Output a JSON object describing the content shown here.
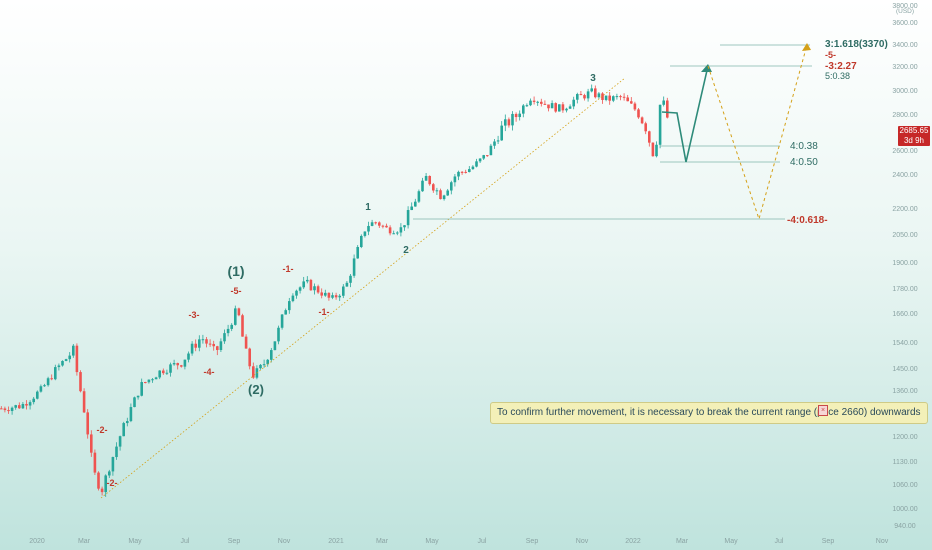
{
  "chart_data": {
    "type": "candlestick",
    "y_axis": {
      "unit": "USD",
      "ticks": [
        "3800.00",
        "3600.00",
        "3400.00",
        "3200.00",
        "3000.00",
        "2800.00",
        "2600.00",
        "2400.00",
        "2200.00",
        "2050.00",
        "1900.00",
        "1780.00",
        "1660.00",
        "1540.00",
        "1450.00",
        "1360.00",
        "1280.00",
        "1200.00",
        "1130.00",
        "1060.00",
        "1000.00",
        "940.00"
      ]
    },
    "x_axis": {
      "ticks": [
        "2020",
        "Mar",
        "May",
        "Jul",
        "Sep",
        "Nov",
        "2021",
        "Mar",
        "May",
        "Jul",
        "Sep",
        "Nov",
        "2022",
        "Mar",
        "May",
        "Jul",
        "Sep",
        "Nov"
      ]
    },
    "current_price": {
      "value": "2685.65",
      "countdown": "3d 9h"
    },
    "wave_labels": [
      {
        "text": "(1)",
        "color": "#2e6b63"
      },
      {
        "text": "(2)",
        "color": "#2e6b63"
      },
      {
        "text": "-5-",
        "color": "#c0392b"
      },
      {
        "text": "-3-",
        "color": "#c0392b"
      },
      {
        "text": "-4-",
        "color": "#c0392b"
      },
      {
        "text": "-1-",
        "color": "#c0392b"
      },
      {
        "text": "-2-",
        "color": "#c0392b"
      },
      {
        "text": "-1-",
        "color": "#c0392b"
      },
      {
        "text": "-2-",
        "color": "#c0392b"
      },
      {
        "text": "1",
        "color": "#2e6b63"
      },
      {
        "text": "2",
        "color": "#2e6b63"
      },
      {
        "text": "3",
        "color": "#2e6b63"
      }
    ],
    "levels": [
      {
        "text": "3:1.618(3370)",
        "color": "#2e6b63"
      },
      {
        "text": "-5-",
        "color": "#c0392b"
      },
      {
        "text": "-3:2.27",
        "color": "#c0392b"
      },
      {
        "text": "5:0.38",
        "color": "#2e6b63"
      },
      {
        "text": "4:0.38",
        "color": "#2e6b63"
      },
      {
        "text": "4:0.50",
        "color": "#2e6b63"
      },
      {
        "text": "-4:0.618-",
        "color": "#c0392b"
      }
    ],
    "annotation": "To confirm further movement, it is necessary to break the current range (price 2660) downwards",
    "colors": {
      "up": "#26a69a",
      "down": "#ef5350",
      "projection_main": "#2e8b7a",
      "projection_alt": "#d4a017",
      "accent": "#c62828"
    }
  }
}
